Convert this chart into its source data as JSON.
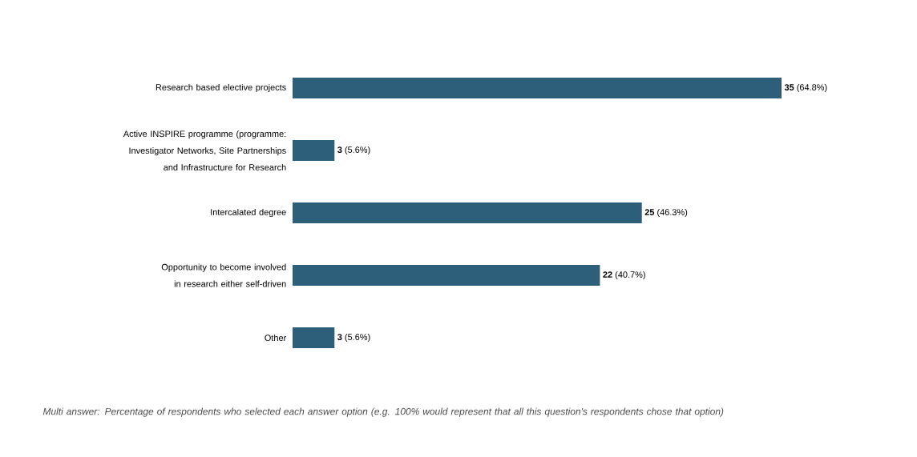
{
  "chart_data": {
    "type": "bar",
    "orientation": "horizontal",
    "categories": [
      "Research based elective projects",
      "Active INSPIRE programme (programme: Investigator Networks, Site Partnerships and Infrastructure for Research",
      "Intercalated degree",
      "Opportunity to become involved in research either self-driven",
      "Other"
    ],
    "values": [
      35,
      3,
      25,
      22,
      3
    ],
    "value_labels": [
      "**35** (64.8%)",
      "**3** (5.6%)",
      "**25** (46.3%)",
      "**22** (40.7%)",
      "**3** (5.6%)"
    ],
    "color": "#2e5f7a",
    "annotations": [
      "Multi answer: Percentage of respondents who selected each answer option (e.g. 100% would represent that all this question's respondents chose that option)"
    ]
  }
}
